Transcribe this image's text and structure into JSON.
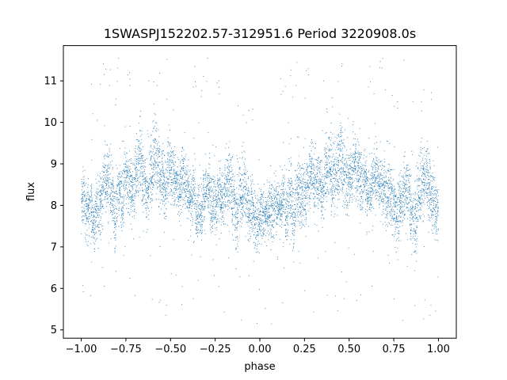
{
  "chart_data": {
    "type": "scatter",
    "title": "1SWASPJ152202.57-312951.6 Period 3220908.0s",
    "xlabel": "phase",
    "ylabel": "flux",
    "xlim": [
      -1.1,
      1.1
    ],
    "ylim": [
      4.8,
      11.85
    ],
    "xticks": [
      -1.0,
      -0.75,
      -0.5,
      -0.25,
      0.0,
      0.25,
      0.5,
      0.75,
      1.0
    ],
    "xtick_labels": [
      "−1.00",
      "−0.75",
      "−0.50",
      "−0.25",
      "0.00",
      "0.25",
      "0.50",
      "0.75",
      "1.00"
    ],
    "yticks": [
      5,
      6,
      7,
      8,
      9,
      10,
      11
    ],
    "ytick_labels": [
      "5",
      "6",
      "7",
      "8",
      "9",
      "10",
      "11"
    ],
    "grid": false,
    "marker_color": "#1f77b4",
    "series": [
      {
        "x": [
          -0.99,
          -0.97,
          -0.95,
          -0.93,
          -0.91,
          -0.89,
          -0.87,
          -0.85,
          -0.83,
          -0.81,
          -0.79,
          -0.77,
          -0.75,
          -0.73,
          -0.71,
          -0.69,
          -0.67,
          -0.65,
          -0.63,
          -0.61,
          -0.59,
          -0.57,
          -0.55,
          -0.53,
          -0.51,
          -0.49,
          -0.47,
          -0.45,
          -0.43,
          -0.41,
          -0.39,
          -0.37,
          -0.35,
          -0.33,
          -0.31,
          -0.29,
          -0.27,
          -0.25,
          -0.23,
          -0.21,
          -0.19,
          -0.17,
          -0.15,
          -0.13,
          -0.11,
          -0.09,
          -0.07,
          -0.05,
          -0.03,
          -0.01,
          0.01,
          0.03,
          0.05,
          0.07,
          0.09,
          0.11,
          0.13,
          0.15,
          0.17,
          0.19,
          0.21,
          0.23,
          0.25,
          0.27,
          0.29,
          0.31,
          0.33,
          0.35,
          0.37,
          0.39,
          0.41,
          0.43,
          0.45,
          0.47,
          0.49,
          0.51,
          0.53,
          0.55,
          0.57,
          0.59,
          0.61,
          0.63,
          0.65,
          0.67,
          0.69,
          0.71,
          0.73,
          0.75,
          0.77,
          0.79,
          0.81,
          0.83,
          0.85,
          0.87,
          0.89,
          0.91,
          0.93,
          0.95,
          0.97,
          0.99
        ],
        "y": [
          8.2,
          7.8,
          8.0,
          7.6,
          7.9,
          8.1,
          8.6,
          8.8,
          8.3,
          7.6,
          8.4,
          8.2,
          8.7,
          8.5,
          8.3,
          8.9,
          9.1,
          8.6,
          8.3,
          8.8,
          9.2,
          8.9,
          8.6,
          8.4,
          8.9,
          8.8,
          8.6,
          8.4,
          8.7,
          8.5,
          8.2,
          8.3,
          7.9,
          7.8,
          8.2,
          8.4,
          8.1,
          8.0,
          8.3,
          8.1,
          8.5,
          8.6,
          8.2,
          7.7,
          8.3,
          8.4,
          8.0,
          7.9,
          7.7,
          7.6,
          7.8,
          7.8,
          7.9,
          7.8,
          8.1,
          8.0,
          8.2,
          7.9,
          8.3,
          7.7,
          8.3,
          8.3,
          8.2,
          8.6,
          8.8,
          8.5,
          8.6,
          8.3,
          8.9,
          9.0,
          8.6,
          8.7,
          9.2,
          8.8,
          8.6,
          8.7,
          9.1,
          8.8,
          8.5,
          8.7,
          8.3,
          8.6,
          8.8,
          8.5,
          8.4,
          8.2,
          8.3,
          8.0,
          7.8,
          8.1,
          8.3,
          8.4,
          7.8,
          7.6,
          8.3,
          8.5,
          8.6,
          8.4,
          8.1,
          7.9
        ],
        "spread": [
          0.75,
          0.8,
          0.7,
          0.75,
          0.8,
          0.85,
          0.9,
          0.9,
          0.85,
          1.0,
          0.85,
          0.8,
          0.8,
          0.8,
          0.85,
          0.9,
          0.95,
          0.85,
          0.85,
          0.95,
          1.0,
          0.95,
          0.85,
          0.8,
          0.85,
          0.8,
          0.8,
          0.8,
          0.75,
          0.75,
          0.8,
          0.85,
          0.8,
          0.8,
          0.75,
          0.75,
          0.75,
          0.8,
          0.75,
          0.75,
          0.8,
          0.85,
          1.0,
          1.1,
          0.9,
          0.9,
          0.85,
          0.8,
          0.8,
          0.75,
          0.75,
          0.7,
          0.75,
          0.75,
          0.75,
          0.7,
          0.8,
          0.9,
          0.95,
          1.0,
          0.9,
          0.85,
          0.8,
          0.8,
          0.85,
          0.8,
          0.75,
          0.8,
          0.9,
          0.95,
          0.9,
          0.95,
          1.0,
          0.95,
          0.85,
          0.85,
          0.9,
          0.85,
          0.8,
          0.8,
          0.8,
          0.8,
          0.8,
          0.75,
          0.8,
          0.8,
          0.8,
          0.85,
          0.9,
          0.8,
          0.8,
          0.8,
          0.95,
          1.05,
          0.9,
          0.9,
          0.9,
          0.85,
          0.8,
          0.75
        ]
      }
    ]
  }
}
